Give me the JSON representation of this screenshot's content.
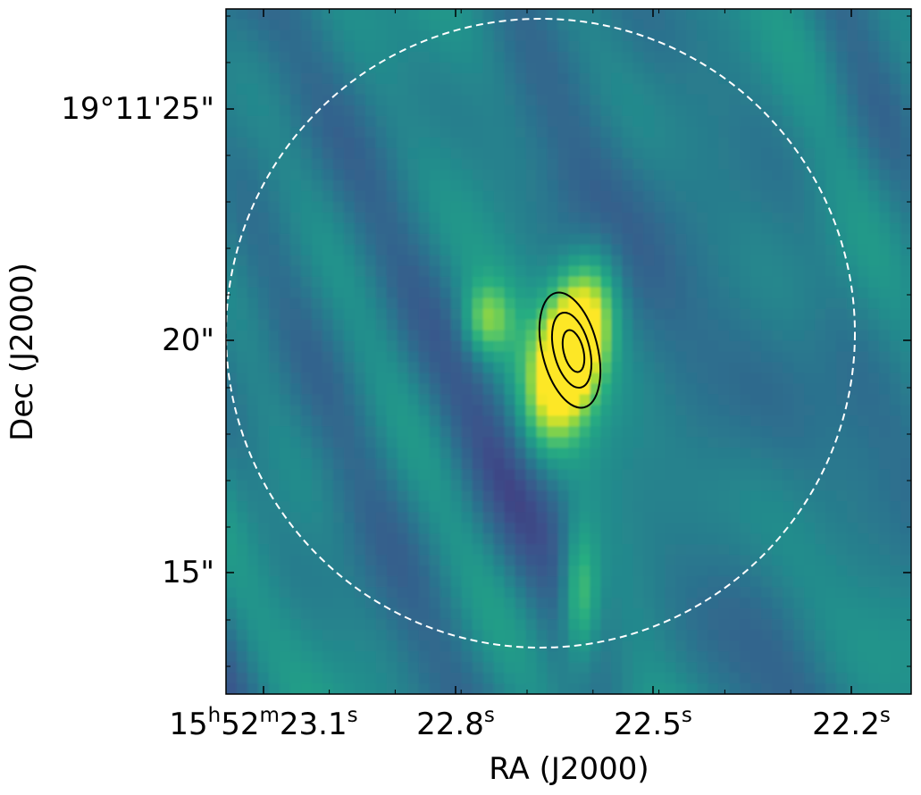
{
  "chart_data": {
    "type": "heatmap",
    "title": "",
    "colormap": "viridis",
    "xlabel": "RA (J2000)",
    "ylabel": "Dec (J2000)",
    "x_ticks": [
      {
        "h": "15",
        "m": "52",
        "s": "23.1"
      },
      {
        "h": "",
        "m": "",
        "s": "22.8"
      },
      {
        "h": "",
        "m": "",
        "s": "22.5"
      },
      {
        "h": "",
        "m": "",
        "s": "22.2"
      }
    ],
    "x_tick_units": {
      "h": "h",
      "m": "m",
      "s": "s"
    },
    "y_ticks": [
      "19°11'25\"",
      "20\"",
      "15\""
    ],
    "x_range_ra_sec": [
      23.28,
      22.15
    ],
    "y_range_dec_arcsec": [
      12.5,
      27.2
    ],
    "source": {
      "ra_sec": 22.65,
      "dec_arcsec": 19.8
    },
    "contour_levels": 3,
    "contour_color": "#000000",
    "primary_beam_circle": {
      "style": "dashed",
      "color": "#ffffff"
    },
    "grid": false
  }
}
